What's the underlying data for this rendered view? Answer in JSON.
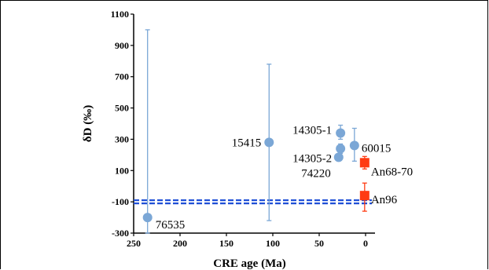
{
  "chart_data": {
    "type": "scatter",
    "xlabel": "CRE age (Ma)",
    "ylabel": "δD (‰)",
    "xlim": [
      250,
      0
    ],
    "ylim": [
      -300,
      1100
    ],
    "x_ticks": [
      "250",
      "200",
      "150",
      "100",
      "50",
      "0"
    ],
    "y_ticks": [
      "1100",
      "900",
      "700",
      "500",
      "300",
      "100",
      "-100",
      "-300"
    ],
    "grid": false,
    "reference_lines": [
      {
        "y": -90,
        "color": "#1f4fd6",
        "style": "dashed"
      },
      {
        "y": -110,
        "color": "#1f4fd6",
        "style": "dashed"
      }
    ],
    "series": [
      {
        "marker": "circle",
        "color": "#7ba7d6",
        "points": [
          {
            "label": "76535",
            "x": 235,
            "y": -200,
            "err_low": 100,
            "err_high": 1200
          },
          {
            "label": "15415",
            "x": 104,
            "y": 280,
            "err_low": 500,
            "err_high": 500
          },
          {
            "label": "14305-1",
            "x": 27,
            "y": 340,
            "err_low": 40,
            "err_high": 50
          },
          {
            "label": "14305-2",
            "x": 27,
            "y": 240,
            "err_low": 30,
            "err_high": 30
          },
          {
            "label": "74220",
            "x": 29,
            "y": 185,
            "err_low": 15,
            "err_high": 15
          },
          {
            "label": "60015",
            "x": 12,
            "y": 260,
            "err_low": 100,
            "err_high": 110
          }
        ]
      },
      {
        "marker": "square",
        "color": "#ff3b12",
        "points": [
          {
            "label": "An68-70",
            "x": 1,
            "y": 150,
            "err_low": 40,
            "err_high": 40
          },
          {
            "label": "An96",
            "x": 1,
            "y": -60,
            "err_low": 100,
            "err_high": 80
          }
        ]
      }
    ]
  }
}
